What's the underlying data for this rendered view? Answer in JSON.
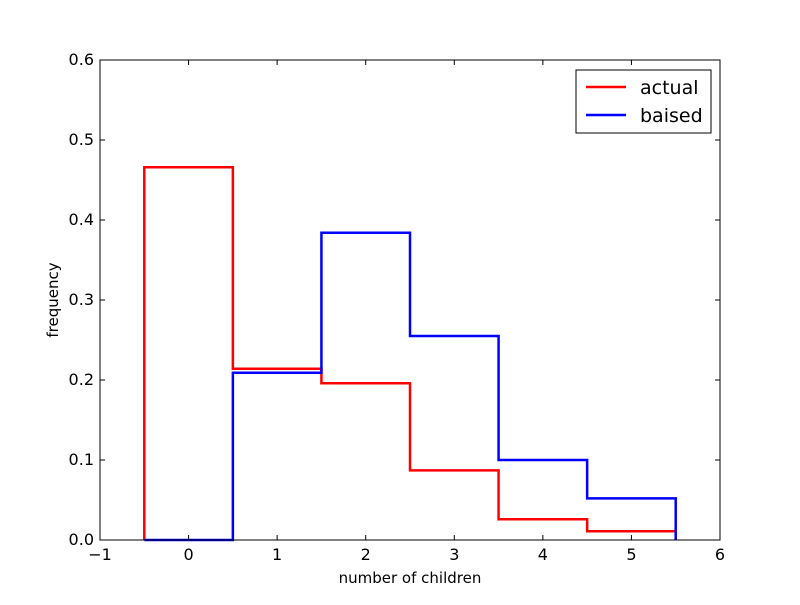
{
  "chart_data": {
    "type": "step",
    "title": "",
    "xlabel": "number of children",
    "ylabel": "frequency",
    "xlim": [
      -1,
      6
    ],
    "ylim": [
      0,
      0.6
    ],
    "xticks": [
      -1,
      0,
      1,
      2,
      3,
      4,
      5,
      6
    ],
    "xtick_labels": [
      "−1",
      "0",
      "1",
      "2",
      "3",
      "4",
      "5",
      "6"
    ],
    "yticks": [
      0.0,
      0.1,
      0.2,
      0.3,
      0.4,
      0.5,
      0.6
    ],
    "ytick_labels": [
      "0.0",
      "0.1",
      "0.2",
      "0.3",
      "0.4",
      "0.5",
      "0.6"
    ],
    "categories": [
      0,
      1,
      2,
      3,
      4,
      5
    ],
    "series": [
      {
        "name": "actual",
        "color": "#ff0000",
        "values": [
          0.466,
          0.214,
          0.196,
          0.087,
          0.026,
          0.011
        ]
      },
      {
        "name": "baised",
        "color": "#0000ff",
        "values": [
          0.0,
          0.209,
          0.384,
          0.255,
          0.1,
          0.052
        ]
      }
    ],
    "grid": false,
    "legend_position": "top-right"
  }
}
